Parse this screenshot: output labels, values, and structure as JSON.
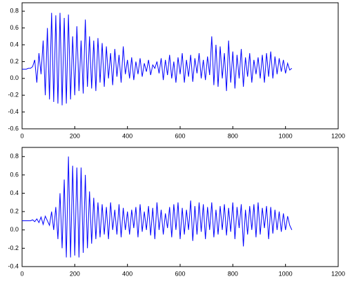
{
  "chart_data": [
    {
      "type": "line",
      "x": [
        0,
        8,
        16,
        24,
        32,
        40,
        48,
        56,
        64,
        72,
        80,
        88,
        96,
        104,
        112,
        120,
        128,
        136,
        144,
        152,
        160,
        168,
        176,
        184,
        192,
        200,
        208,
        216,
        224,
        232,
        240,
        248,
        256,
        264,
        272,
        280,
        288,
        296,
        304,
        312,
        320,
        328,
        336,
        344,
        352,
        360,
        368,
        376,
        384,
        392,
        400,
        408,
        416,
        424,
        432,
        440,
        448,
        456,
        464,
        472,
        480,
        488,
        496,
        504,
        512,
        520,
        528,
        536,
        544,
        552,
        560,
        568,
        576,
        584,
        592,
        600,
        608,
        616,
        624,
        632,
        640,
        648,
        656,
        664,
        672,
        680,
        688,
        696,
        704,
        712,
        720,
        728,
        736,
        744,
        752,
        760,
        768,
        776,
        784,
        792,
        800,
        808,
        816,
        824,
        832,
        840,
        848,
        856,
        864,
        872,
        880,
        888,
        896,
        904,
        912,
        920,
        928,
        936,
        944,
        952,
        960,
        968,
        976,
        984,
        992,
        1000,
        1008,
        1016,
        1024
      ],
      "series": [
        {
          "color": "#0000ff",
          "values": [
            0.11,
            0.11,
            0.11,
            0.12,
            0.12,
            0.14,
            0.22,
            -0.05,
            0.3,
            0.05,
            0.45,
            -0.2,
            0.6,
            -0.25,
            0.78,
            -0.28,
            0.75,
            -0.3,
            0.78,
            -0.32,
            0.72,
            -0.3,
            0.76,
            -0.25,
            0.5,
            -0.2,
            0.62,
            -0.15,
            0.45,
            -0.18,
            0.7,
            -0.1,
            0.5,
            -0.12,
            0.45,
            -0.15,
            0.48,
            -0.05,
            0.42,
            -0.1,
            0.38,
            0.0,
            0.3,
            -0.08,
            0.35,
            0.02,
            0.28,
            -0.05,
            0.38,
            0.05,
            0.22,
            0.0,
            0.25,
            -0.02,
            0.2,
            0.05,
            0.24,
            0.02,
            0.18,
            0.08,
            0.22,
            0.04,
            0.16,
            0.12,
            0.2,
            0.06,
            0.24,
            -0.02,
            0.22,
            0.04,
            0.28,
            0.0,
            0.2,
            -0.05,
            0.25,
            0.05,
            0.3,
            -0.05,
            0.22,
            0.02,
            0.28,
            -0.04,
            0.24,
            0.06,
            0.3,
            0.0,
            0.22,
            -0.02,
            0.26,
            0.04,
            0.5,
            -0.08,
            0.4,
            -0.1,
            0.38,
            0.0,
            0.3,
            -0.15,
            0.45,
            -0.05,
            0.32,
            -0.12,
            0.28,
            0.0,
            0.35,
            -0.1,
            0.25,
            0.02,
            0.3,
            -0.05,
            0.22,
            0.05,
            0.25,
            0.0,
            0.28,
            -0.05,
            0.3,
            0.02,
            0.32,
            0.0,
            0.26,
            0.05,
            0.24,
            0.08,
            0.22,
            0.06,
            0.18,
            0.1,
            0.12
          ]
        }
      ],
      "xlim": [
        0,
        1200
      ],
      "xticks": [
        0,
        200,
        400,
        600,
        800,
        1000,
        1200
      ],
      "ylim": [
        -0.6,
        0.9
      ],
      "yticks": [
        -0.6,
        -0.4,
        -0.2,
        {
          "value": 0,
          "label": "0.0"
        },
        0.2,
        0.4,
        0.6,
        0.8
      ]
    },
    {
      "type": "line",
      "x": [
        0,
        8,
        16,
        24,
        32,
        40,
        48,
        56,
        64,
        72,
        80,
        88,
        96,
        104,
        112,
        120,
        128,
        136,
        144,
        152,
        160,
        168,
        176,
        184,
        192,
        200,
        208,
        216,
        224,
        232,
        240,
        248,
        256,
        264,
        272,
        280,
        288,
        296,
        304,
        312,
        320,
        328,
        336,
        344,
        352,
        360,
        368,
        376,
        384,
        392,
        400,
        408,
        416,
        424,
        432,
        440,
        448,
        456,
        464,
        472,
        480,
        488,
        496,
        504,
        512,
        520,
        528,
        536,
        544,
        552,
        560,
        568,
        576,
        584,
        592,
        600,
        608,
        616,
        624,
        632,
        640,
        648,
        656,
        664,
        672,
        680,
        688,
        696,
        704,
        712,
        720,
        728,
        736,
        744,
        752,
        760,
        768,
        776,
        784,
        792,
        800,
        808,
        816,
        824,
        832,
        840,
        848,
        856,
        864,
        872,
        880,
        888,
        896,
        904,
        912,
        920,
        928,
        936,
        944,
        952,
        960,
        968,
        976,
        984,
        992,
        1000,
        1008,
        1016,
        1024
      ],
      "series": [
        {
          "color": "#0000ff",
          "values": [
            0.1,
            0.1,
            0.1,
            0.1,
            0.1,
            0.11,
            0.09,
            0.12,
            0.08,
            0.14,
            0.06,
            0.15,
            0.1,
            0.05,
            0.2,
            0.0,
            0.25,
            -0.1,
            0.4,
            -0.2,
            0.55,
            -0.3,
            0.8,
            -0.3,
            0.7,
            -0.28,
            0.68,
            -0.3,
            0.68,
            -0.25,
            0.6,
            -0.2,
            0.42,
            -0.15,
            0.35,
            -0.1,
            0.3,
            -0.08,
            0.28,
            -0.05,
            0.25,
            -0.1,
            0.3,
            0.0,
            0.22,
            -0.05,
            0.28,
            -0.08,
            0.24,
            0.0,
            0.2,
            -0.05,
            0.22,
            0.02,
            0.25,
            -0.08,
            0.28,
            -0.02,
            0.2,
            0.0,
            0.26,
            -0.06,
            0.24,
            -0.1,
            0.3,
            0.0,
            0.22,
            -0.05,
            0.18,
            0.02,
            0.25,
            -0.08,
            0.28,
            0.0,
            0.3,
            -0.1,
            0.24,
            -0.05,
            0.22,
            0.0,
            0.32,
            -0.12,
            0.26,
            -0.05,
            0.3,
            -0.02,
            0.28,
            -0.1,
            0.25,
            0.0,
            0.3,
            -0.08,
            0.22,
            -0.05,
            0.26,
            0.0,
            0.28,
            -0.06,
            0.24,
            -0.02,
            0.3,
            -0.1,
            0.25,
            0.02,
            0.28,
            -0.18,
            0.22,
            -0.05,
            0.26,
            0.0,
            0.28,
            -0.08,
            0.3,
            -0.05,
            0.24,
            0.02,
            0.26,
            -0.1,
            0.25,
            -0.04,
            0.22,
            0.0,
            0.2,
            -0.02,
            0.18,
            0.0,
            0.15,
            0.05,
            0.0
          ]
        }
      ],
      "xlim": [
        0,
        1200
      ],
      "xticks": [
        0,
        200,
        400,
        600,
        800,
        1000,
        1200
      ],
      "ylim": [
        -0.4,
        0.9
      ],
      "yticks": [
        -0.4,
        -0.2,
        {
          "value": 0,
          "label": "0.0"
        },
        0.2,
        0.4,
        0.6,
        0.8
      ]
    }
  ]
}
